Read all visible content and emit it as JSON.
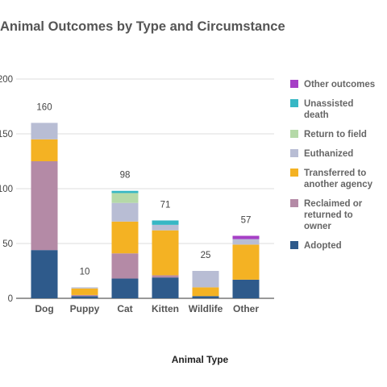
{
  "chart_data": {
    "type": "bar",
    "stacked": true,
    "title": "Animal Outcomes by Type and Circumstance",
    "xlabel": "Animal Type",
    "ylabel": "",
    "ylim": [
      0,
      200
    ],
    "yticks": [
      0,
      50,
      100,
      150,
      200
    ],
    "grid": true,
    "legend_position": "right",
    "categories": [
      "Dog",
      "Puppy",
      "Cat",
      "Kitten",
      "Wildlife",
      "Other"
    ],
    "totals": [
      160,
      10,
      98,
      71,
      25,
      57
    ],
    "series": [
      {
        "name": "Adopted",
        "color": "#2e5a8b",
        "values": [
          44,
          2,
          18,
          19,
          2,
          17
        ]
      },
      {
        "name": "Reclaimed or returned to owner",
        "color": "#b48aa6",
        "values": [
          81,
          1,
          23,
          2,
          0,
          0
        ]
      },
      {
        "name": "Transferred to another agency",
        "color": "#f4b223",
        "values": [
          20,
          6,
          29,
          41,
          8,
          32
        ]
      },
      {
        "name": "Euthanized",
        "color": "#b8bdd4",
        "values": [
          15,
          1,
          17,
          5,
          15,
          5
        ]
      },
      {
        "name": "Return to field",
        "color": "#b5d9a8",
        "values": [
          0,
          0,
          9,
          0,
          0,
          0
        ]
      },
      {
        "name": "Unassisted death",
        "color": "#36b7c4",
        "values": [
          0,
          0,
          2,
          4,
          0,
          0
        ]
      },
      {
        "name": "Other outcomes",
        "color": "#a63fc6",
        "values": [
          0,
          0,
          0,
          0,
          0,
          3
        ]
      }
    ]
  }
}
